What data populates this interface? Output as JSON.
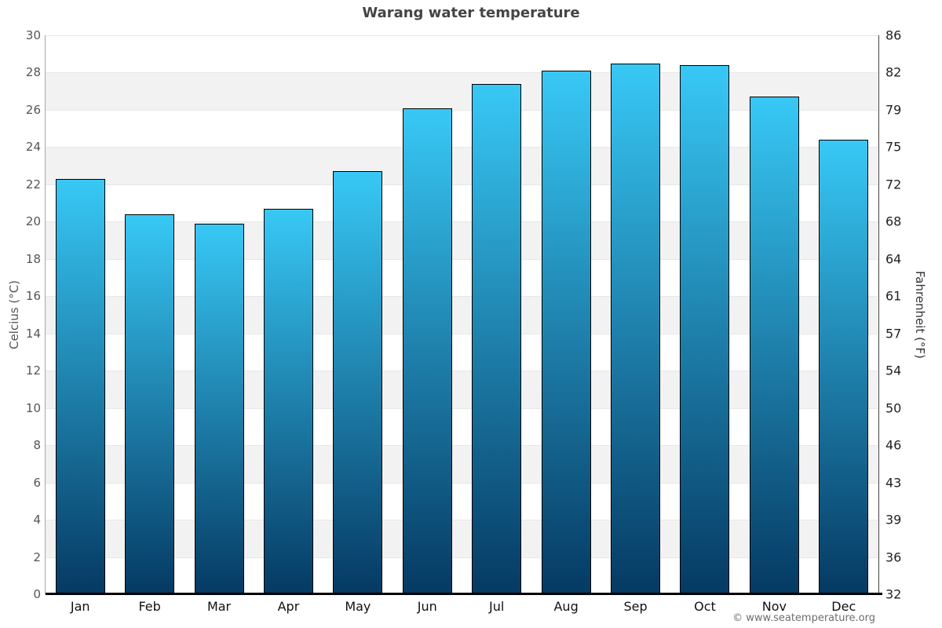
{
  "title": {
    "text": "Warang water temperature",
    "color": "#444444"
  },
  "chart_data": {
    "type": "bar",
    "title": "Warang water temperature",
    "categories": [
      "Jan",
      "Feb",
      "Mar",
      "Apr",
      "May",
      "Jun",
      "Jul",
      "Aug",
      "Sep",
      "Oct",
      "Nov",
      "Dec"
    ],
    "values": [
      22.3,
      20.4,
      19.9,
      20.7,
      22.7,
      26.1,
      27.4,
      28.1,
      28.5,
      28.4,
      26.7,
      24.4
    ],
    "xlabel": "",
    "ylabel_left": "Celcius (°C)",
    "ylabel_right": "Fahrenheit (°F)",
    "ylim": [
      0,
      30
    ],
    "ytick_step": 2,
    "yticks_celsius": [
      "30",
      "28",
      "26",
      "24",
      "22",
      "20",
      "18",
      "16",
      "14",
      "12",
      "10",
      "8",
      "6",
      "4",
      "2",
      "0"
    ],
    "yticks_fahrenheit": [
      "86",
      "82",
      "79",
      "75",
      "72",
      "68",
      "64",
      "61",
      "57",
      "54",
      "50",
      "46",
      "43",
      "39",
      "36",
      "32"
    ],
    "grid": "horizontal alternating bands every 2°C",
    "legend": "none"
  },
  "colors": {
    "bar_gradient_top": "#38c8f5",
    "bar_gradient_bottom": "#053a63",
    "bar_border": "#000000",
    "band_gray": "#f2f2f2",
    "gridline": "#e7e7e7",
    "title_text": "#444444",
    "axis_text_left": "#555555",
    "axis_text_right": "#222222"
  },
  "attribution": {
    "text": "© www.seatemperature.org"
  }
}
